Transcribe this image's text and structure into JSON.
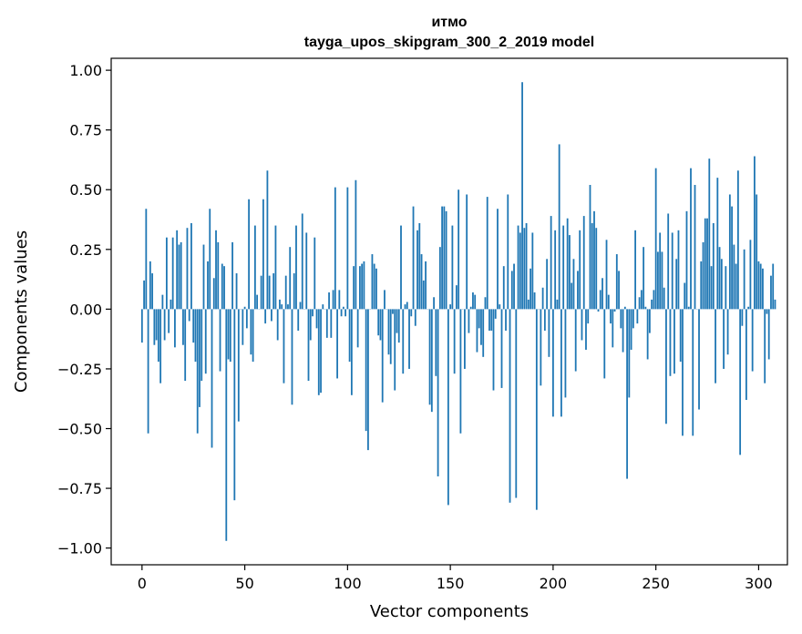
{
  "chart_data": {
    "type": "bar",
    "title": "итмо",
    "subtitle": "tayga_upos_skipgram_300_2_2019 model",
    "xlabel": "Vector components",
    "ylabel": "Components values",
    "xlim": [
      -15,
      314
    ],
    "ylim": [
      -1.07,
      1.05
    ],
    "xticks": [
      0,
      50,
      100,
      150,
      200,
      250,
      300
    ],
    "xtick_labels": [
      "0",
      "50",
      "100",
      "150",
      "200",
      "250",
      "300"
    ],
    "yticks": [
      1.0,
      0.75,
      0.5,
      0.25,
      0.0,
      -0.25,
      -0.5,
      -0.75,
      -1.0
    ],
    "ytick_labels": [
      "1.00",
      "0.75",
      "0.50",
      "0.25",
      "0.00",
      "−0.25",
      "−0.50",
      "−0.75",
      "−1.00"
    ],
    "grid": false,
    "bar_color": "#1f77b4",
    "values": [
      -0.14,
      0.12,
      0.42,
      -0.52,
      0.2,
      0.15,
      -0.15,
      -0.13,
      -0.22,
      -0.31,
      0.06,
      -0.13,
      0.3,
      -0.1,
      0.04,
      0.3,
      -0.16,
      0.33,
      0.27,
      0.28,
      -0.15,
      -0.3,
      0.34,
      -0.05,
      0.36,
      -0.14,
      -0.22,
      -0.52,
      -0.41,
      -0.3,
      0.27,
      -0.27,
      0.2,
      0.42,
      -0.58,
      0.13,
      0.33,
      0.28,
      -0.26,
      0.19,
      0.18,
      -0.97,
      -0.21,
      -0.22,
      0.28,
      -0.8,
      0.15,
      -0.47,
      0.0,
      -0.15,
      0.01,
      -0.08,
      0.46,
      -0.19,
      -0.22,
      0.35,
      0.06,
      0.0,
      0.14,
      0.46,
      -0.06,
      0.58,
      0.14,
      -0.05,
      0.15,
      0.35,
      -0.13,
      0.04,
      0.02,
      -0.31,
      0.14,
      0.02,
      0.26,
      -0.4,
      0.15,
      0.35,
      -0.09,
      0.03,
      0.4,
      0.0,
      0.32,
      -0.3,
      -0.13,
      -0.03,
      0.3,
      -0.08,
      -0.36,
      -0.35,
      0.02,
      0.0,
      -0.12,
      0.07,
      -0.12,
      0.08,
      0.51,
      -0.29,
      0.08,
      -0.03,
      0.01,
      -0.03,
      0.51,
      -0.22,
      -0.36,
      0.18,
      0.54,
      -0.16,
      0.18,
      0.19,
      0.2,
      -0.51,
      -0.59,
      0.0,
      0.23,
      0.19,
      0.17,
      -0.11,
      -0.13,
      -0.39,
      0.08,
      0.0,
      -0.19,
      -0.23,
      -0.02,
      -0.34,
      -0.1,
      -0.14,
      0.35,
      -0.27,
      0.02,
      0.03,
      -0.25,
      -0.03,
      0.43,
      -0.07,
      0.33,
      0.36,
      0.23,
      0.12,
      0.2,
      0.0,
      -0.4,
      -0.43,
      0.05,
      -0.28,
      -0.7,
      0.26,
      0.43,
      0.43,
      0.41,
      -0.82,
      0.02,
      0.35,
      -0.27,
      0.1,
      0.5,
      -0.52,
      0.0,
      -0.25,
      0.48,
      -0.1,
      0.01,
      0.07,
      0.06,
      -0.18,
      -0.08,
      -0.15,
      -0.2,
      0.05,
      0.47,
      -0.09,
      -0.09,
      -0.34,
      -0.04,
      0.42,
      0.02,
      -0.33,
      0.18,
      -0.09,
      0.48,
      -0.81,
      0.16,
      0.19,
      -0.79,
      0.35,
      0.32,
      0.95,
      0.34,
      0.36,
      0.04,
      0.17,
      0.32,
      0.07,
      -0.84,
      0.0,
      -0.32,
      0.09,
      -0.09,
      0.21,
      -0.2,
      0.39,
      -0.45,
      0.33,
      0.04,
      0.69,
      -0.45,
      0.35,
      -0.37,
      0.38,
      0.31,
      0.11,
      0.21,
      -0.26,
      0.16,
      0.33,
      -0.13,
      0.39,
      -0.17,
      -0.06,
      0.52,
      0.36,
      0.41,
      0.34,
      -0.01,
      0.08,
      0.13,
      -0.29,
      0.29,
      0.06,
      -0.06,
      -0.16,
      -0.01,
      0.23,
      0.16,
      -0.08,
      -0.18,
      0.01,
      -0.71,
      -0.37,
      -0.17,
      -0.08,
      0.33,
      -0.06,
      0.05,
      0.08,
      0.26,
      0.01,
      -0.21,
      -0.1,
      0.04,
      0.08,
      0.59,
      0.24,
      0.32,
      0.24,
      0.09,
      -0.48,
      0.4,
      -0.28,
      0.32,
      -0.27,
      0.21,
      0.33,
      -0.22,
      -0.53,
      0.11,
      0.41,
      0.01,
      0.59,
      -0.53,
      0.52,
      0.0,
      -0.42,
      0.2,
      0.28,
      0.38,
      0.38,
      0.63,
      0.18,
      0.36,
      -0.31,
      0.55,
      0.26,
      0.21,
      -0.25,
      0.18,
      -0.19,
      0.48,
      0.43,
      0.27,
      0.19,
      0.58,
      -0.61,
      -0.07,
      0.25,
      -0.38,
      0.01,
      0.29,
      -0.26,
      0.64,
      0.48,
      0.2,
      0.19,
      0.17,
      -0.31,
      -0.02,
      -0.21,
      0.14,
      0.19,
      0.04
    ]
  }
}
